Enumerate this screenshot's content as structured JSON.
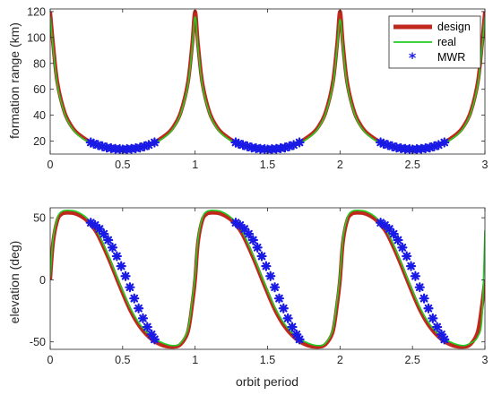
{
  "chart_data": [
    {
      "type": "line",
      "xlabel": "",
      "ylabel": "formation range (km)",
      "xlim": [
        0,
        3
      ],
      "ylim": [
        10,
        122
      ],
      "xticks": [
        "0",
        "0.5",
        "1",
        "1.5",
        "2",
        "2.5",
        "3"
      ],
      "yticks": [
        "20",
        "40",
        "60",
        "80",
        "100",
        "120"
      ],
      "ytick_values": [
        20,
        40,
        60,
        80,
        100,
        120
      ],
      "legend_position": "top-right",
      "series": [
        {
          "name": "design",
          "color": "#c0281d",
          "x": [
            0.0,
            0.02,
            0.05,
            0.1,
            0.15,
            0.2,
            0.3,
            0.4,
            0.5,
            0.6,
            0.7,
            0.8,
            0.85,
            0.9,
            0.95,
            0.98,
            1.0,
            1.02,
            1.05,
            1.1,
            1.15,
            1.2,
            1.3,
            1.4,
            1.5,
            1.6,
            1.7,
            1.8,
            1.85,
            1.9,
            1.95,
            1.98,
            2.0,
            2.02,
            2.05,
            2.1,
            2.15,
            2.2,
            2.3,
            2.4,
            2.5,
            2.6,
            2.7,
            2.8,
            2.85,
            2.9,
            2.95,
            2.98,
            3.0
          ],
          "y": [
            120,
            95,
            65,
            42,
            31,
            25,
            18,
            15,
            14,
            15,
            18,
            25,
            31,
            42,
            65,
            95,
            120,
            95,
            65,
            42,
            31,
            25,
            18,
            15,
            14,
            15,
            18,
            25,
            31,
            42,
            65,
            95,
            120,
            95,
            65,
            42,
            31,
            25,
            18,
            15,
            14,
            15,
            18,
            25,
            31,
            42,
            65,
            95,
            120
          ]
        },
        {
          "name": "real",
          "color": "#22cc22",
          "x": [
            0.0,
            0.02,
            0.05,
            0.1,
            0.15,
            0.2,
            0.3,
            0.4,
            0.5,
            0.6,
            0.7,
            0.8,
            0.85,
            0.9,
            0.95,
            0.98,
            1.0,
            1.02,
            1.05,
            1.1,
            1.15,
            1.2,
            1.3,
            1.4,
            1.5,
            1.6,
            1.7,
            1.8,
            1.85,
            1.9,
            1.95,
            1.98,
            2.0,
            2.02,
            2.05,
            2.1,
            2.15,
            2.2,
            2.3,
            2.4,
            2.5,
            2.6,
            2.7,
            2.8,
            2.85,
            2.9,
            2.95,
            2.98,
            3.0
          ],
          "y": [
            116,
            92,
            63,
            41,
            30,
            24,
            17,
            14,
            13,
            14,
            17,
            24,
            30,
            41,
            63,
            92,
            116,
            92,
            63,
            41,
            30,
            24,
            17,
            14,
            13,
            14,
            17,
            24,
            30,
            41,
            63,
            92,
            114,
            92,
            63,
            41,
            30,
            24,
            17,
            14,
            13,
            14,
            17,
            24,
            30,
            41,
            63,
            92,
            116
          ]
        },
        {
          "name": "MWR",
          "color": "#1a1ae6",
          "marker": "*",
          "x": [
            0.28,
            0.3,
            0.33,
            0.36,
            0.39,
            0.42,
            0.45,
            0.48,
            0.5,
            0.53,
            0.56,
            0.59,
            0.62,
            0.65,
            0.68,
            0.72,
            1.28,
            1.3,
            1.33,
            1.36,
            1.39,
            1.42,
            1.45,
            1.48,
            1.5,
            1.53,
            1.56,
            1.59,
            1.62,
            1.65,
            1.68,
            1.72,
            2.28,
            2.3,
            2.33,
            2.36,
            2.39,
            2.42,
            2.45,
            2.48,
            2.5,
            2.53,
            2.56,
            2.59,
            2.62,
            2.65,
            2.68,
            2.72
          ],
          "y": [
            19,
            18,
            17,
            16,
            15,
            14.5,
            14,
            13.8,
            13.5,
            13.8,
            14,
            14.5,
            15,
            16,
            17,
            19,
            19,
            18,
            17,
            16,
            15,
            14.5,
            14,
            13.8,
            13.5,
            13.8,
            14,
            14.5,
            15,
            16,
            17,
            19,
            19,
            18,
            17,
            16,
            15,
            14.5,
            14,
            13.8,
            13.5,
            13.8,
            14,
            14.5,
            15,
            16,
            17,
            19
          ]
        }
      ]
    },
    {
      "type": "line",
      "xlabel": "orbit period",
      "ylabel": "elevation (deg)",
      "xlim": [
        0,
        3
      ],
      "ylim": [
        -56,
        58
      ],
      "xticks": [
        "0",
        "0.5",
        "1",
        "1.5",
        "2",
        "2.5",
        "3"
      ],
      "yticks": [
        "-50",
        "0",
        "50"
      ],
      "ytick_values": [
        -50,
        0,
        50
      ],
      "series": [
        {
          "name": "design",
          "color": "#c0281d",
          "x": [
            0.0,
            0.02,
            0.05,
            0.08,
            0.12,
            0.18,
            0.25,
            0.32,
            0.4,
            0.48,
            0.55,
            0.62,
            0.7,
            0.78,
            0.85,
            0.9,
            0.95,
            0.98,
            1.0,
            1.02,
            1.05,
            1.08,
            1.12,
            1.18,
            1.25,
            1.32,
            1.4,
            1.48,
            1.55,
            1.62,
            1.7,
            1.78,
            1.85,
            1.9,
            1.95,
            1.98,
            2.0,
            2.02,
            2.05,
            2.08,
            2.12,
            2.18,
            2.25,
            2.32,
            2.4,
            2.48,
            2.55,
            2.62,
            2.7,
            2.78,
            2.85,
            2.9,
            2.95,
            2.98,
            3.0
          ],
          "y": [
            0,
            30,
            48,
            53,
            54,
            53,
            48,
            38,
            18,
            -5,
            -24,
            -38,
            -48,
            -53,
            -54,
            -52,
            -42,
            -20,
            0,
            30,
            48,
            53,
            54,
            53,
            48,
            38,
            18,
            -5,
            -24,
            -38,
            -48,
            -53,
            -54,
            -52,
            -42,
            -20,
            0,
            30,
            48,
            53,
            54,
            53,
            48,
            38,
            18,
            -5,
            -24,
            -38,
            -48,
            -53,
            -54,
            -52,
            -42,
            -20,
            0
          ]
        },
        {
          "name": "real",
          "color": "#22cc22",
          "x": [
            0.0,
            0.02,
            0.05,
            0.08,
            0.12,
            0.18,
            0.25,
            0.32,
            0.4,
            0.48,
            0.55,
            0.62,
            0.7,
            0.78,
            0.85,
            0.9,
            0.95,
            0.98,
            1.0,
            1.02,
            1.05,
            1.08,
            1.12,
            1.18,
            1.25,
            1.32,
            1.4,
            1.48,
            1.55,
            1.62,
            1.7,
            1.78,
            1.85,
            1.9,
            1.95,
            1.98,
            2.0,
            2.02,
            2.05,
            2.08,
            2.12,
            2.18,
            2.25,
            2.32,
            2.4,
            2.48,
            2.55,
            2.62,
            2.7,
            2.78,
            2.85,
            2.9,
            2.95,
            2.98,
            3.0
          ],
          "y": [
            2,
            33,
            50,
            55,
            56,
            55,
            50,
            40,
            20,
            -3,
            -22,
            -36,
            -46,
            -51,
            -53,
            -51,
            -40,
            -16,
            4,
            33,
            50,
            55,
            56,
            55,
            50,
            40,
            20,
            -3,
            -22,
            -36,
            -46,
            -51,
            -53,
            -51,
            -40,
            -16,
            4,
            33,
            50,
            55,
            56,
            55,
            50,
            40,
            20,
            -3,
            -22,
            -36,
            -46,
            -51,
            -53,
            -51,
            -46,
            -30,
            40
          ]
        },
        {
          "name": "MWR",
          "color": "#1a1ae6",
          "marker": "*",
          "x": [
            0.28,
            0.31,
            0.34,
            0.37,
            0.4,
            0.43,
            0.46,
            0.49,
            0.52,
            0.55,
            0.58,
            0.61,
            0.64,
            0.67,
            0.7,
            0.72,
            1.28,
            1.31,
            1.34,
            1.37,
            1.4,
            1.43,
            1.46,
            1.49,
            1.52,
            1.55,
            1.58,
            1.61,
            1.64,
            1.67,
            1.7,
            1.72,
            2.28,
            2.31,
            2.34,
            2.37,
            2.4,
            2.43,
            2.46,
            2.49,
            2.52,
            2.55,
            2.58,
            2.61,
            2.64,
            2.67,
            2.7,
            2.72
          ],
          "y": [
            46,
            44,
            41,
            37,
            32,
            26,
            19,
            11,
            3,
            -6,
            -15,
            -23,
            -31,
            -38,
            -44,
            -48,
            46,
            44,
            41,
            37,
            32,
            26,
            19,
            11,
            3,
            -6,
            -15,
            -23,
            -31,
            -38,
            -44,
            -48,
            46,
            44,
            41,
            37,
            32,
            26,
            19,
            11,
            3,
            -6,
            -15,
            -23,
            -31,
            -38,
            -44,
            -48
          ]
        }
      ]
    }
  ]
}
